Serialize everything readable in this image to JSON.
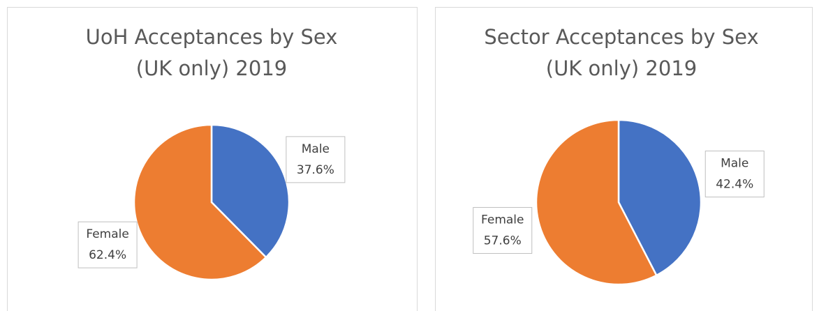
{
  "chart_data": [
    {
      "type": "pie",
      "title": [
        "UoH Acceptances by Sex",
        "(UK only) 2019"
      ],
      "categories": [
        "Male",
        "Female"
      ],
      "values": [
        37.6,
        62.4
      ],
      "value_labels": [
        "37.6%",
        "62.4%"
      ],
      "colors": [
        "#4472c4",
        "#ed7d31"
      ]
    },
    {
      "type": "pie",
      "title": [
        "Sector Acceptances by Sex",
        "(UK only) 2019"
      ],
      "categories": [
        "Male",
        "Female"
      ],
      "values": [
        42.4,
        57.6
      ],
      "value_labels": [
        "42.4%",
        "57.6%"
      ],
      "colors": [
        "#4472c4",
        "#ed7d31"
      ]
    }
  ]
}
